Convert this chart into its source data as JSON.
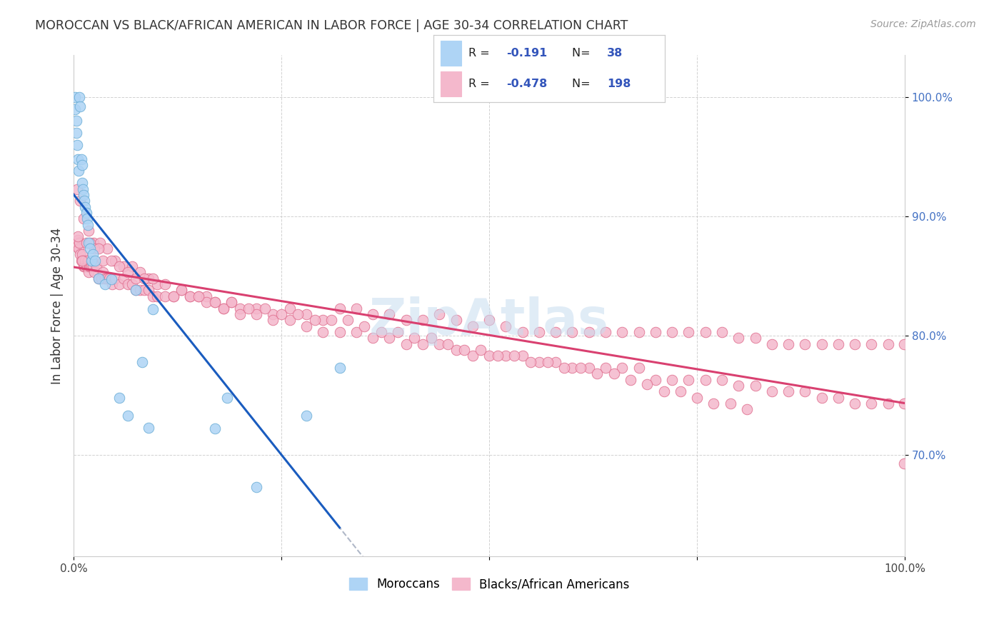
{
  "title": "MOROCCAN VS BLACK/AFRICAN AMERICAN IN LABOR FORCE | AGE 30-34 CORRELATION CHART",
  "source": "Source: ZipAtlas.com",
  "ylabel": "In Labor Force | Age 30-34",
  "xlim": [
    0.0,
    1.0
  ],
  "ylim": [
    0.615,
    1.035
  ],
  "yticks": [
    0.7,
    0.8,
    0.9,
    1.0
  ],
  "ytick_labels": [
    "70.0%",
    "80.0%",
    "90.0%",
    "100.0%"
  ],
  "xtick_labels": [
    "0.0%",
    "",
    "",
    "",
    "100.0%"
  ],
  "moroccan_color": "#aed4f5",
  "moroccan_edge": "#6baed6",
  "black_color": "#f4b8cc",
  "black_edge": "#e07090",
  "blue_line_color": "#1a5cbf",
  "pink_line_color": "#d94070",
  "dashed_line_color": "#b0b8c8",
  "background_color": "#ffffff",
  "watermark": "ZipAtlas",
  "watermark_color": "#c8ddf0",
  "r1": "-0.191",
  "n1": "38",
  "r2": "-0.478",
  "n2": "198",
  "moroccan_x": [
    0.002,
    0.002,
    0.003,
    0.003,
    0.004,
    0.005,
    0.006,
    0.007,
    0.008,
    0.009,
    0.01,
    0.01,
    0.011,
    0.012,
    0.013,
    0.014,
    0.015,
    0.016,
    0.017,
    0.018,
    0.02,
    0.021,
    0.023,
    0.026,
    0.03,
    0.038,
    0.045,
    0.055,
    0.065,
    0.075,
    0.082,
    0.09,
    0.095,
    0.17,
    0.185,
    0.22,
    0.28,
    0.32
  ],
  "moroccan_y": [
    1.0,
    0.99,
    0.98,
    0.97,
    0.96,
    0.948,
    0.938,
    1.0,
    0.992,
    0.948,
    0.943,
    0.928,
    0.923,
    0.918,
    0.913,
    0.908,
    0.903,
    0.898,
    0.893,
    0.878,
    0.873,
    0.863,
    0.868,
    0.863,
    0.848,
    0.843,
    0.847,
    0.748,
    0.733,
    0.838,
    0.778,
    0.723,
    0.822,
    0.722,
    0.748,
    0.673,
    0.733,
    0.773
  ],
  "black_x": [
    0.003,
    0.005,
    0.006,
    0.007,
    0.008,
    0.009,
    0.01,
    0.011,
    0.012,
    0.013,
    0.014,
    0.015,
    0.016,
    0.017,
    0.018,
    0.019,
    0.02,
    0.021,
    0.022,
    0.023,
    0.025,
    0.027,
    0.03,
    0.033,
    0.035,
    0.038,
    0.04,
    0.043,
    0.046,
    0.05,
    0.055,
    0.06,
    0.065,
    0.07,
    0.075,
    0.08,
    0.085,
    0.09,
    0.095,
    0.1,
    0.11,
    0.12,
    0.13,
    0.14,
    0.15,
    0.16,
    0.17,
    0.18,
    0.19,
    0.2,
    0.22,
    0.24,
    0.26,
    0.28,
    0.3,
    0.32,
    0.34,
    0.36,
    0.38,
    0.4,
    0.42,
    0.44,
    0.46,
    0.48,
    0.5,
    0.52,
    0.54,
    0.56,
    0.58,
    0.6,
    0.62,
    0.64,
    0.66,
    0.68,
    0.7,
    0.72,
    0.74,
    0.76,
    0.78,
    0.8,
    0.82,
    0.84,
    0.86,
    0.88,
    0.9,
    0.92,
    0.94,
    0.96,
    0.98,
    0.999,
    0.004,
    0.008,
    0.012,
    0.018,
    0.024,
    0.032,
    0.04,
    0.05,
    0.06,
    0.07,
    0.08,
    0.09,
    0.1,
    0.12,
    0.14,
    0.16,
    0.18,
    0.2,
    0.22,
    0.24,
    0.26,
    0.28,
    0.3,
    0.32,
    0.34,
    0.36,
    0.38,
    0.4,
    0.42,
    0.44,
    0.46,
    0.48,
    0.5,
    0.52,
    0.54,
    0.56,
    0.58,
    0.6,
    0.62,
    0.64,
    0.66,
    0.68,
    0.7,
    0.72,
    0.74,
    0.76,
    0.78,
    0.8,
    0.82,
    0.84,
    0.86,
    0.88,
    0.9,
    0.92,
    0.94,
    0.96,
    0.98,
    0.999,
    0.005,
    0.01,
    0.015,
    0.02,
    0.025,
    0.03,
    0.035,
    0.045,
    0.055,
    0.065,
    0.075,
    0.085,
    0.095,
    0.11,
    0.13,
    0.15,
    0.17,
    0.19,
    0.21,
    0.23,
    0.25,
    0.27,
    0.29,
    0.31,
    0.33,
    0.35,
    0.37,
    0.39,
    0.41,
    0.43,
    0.45,
    0.47,
    0.49,
    0.51,
    0.53,
    0.55,
    0.57,
    0.59,
    0.61,
    0.63,
    0.65,
    0.67,
    0.69,
    0.71,
    0.73,
    0.75,
    0.77,
    0.79,
    0.81,
    0.999
  ],
  "black_y": [
    0.875,
    0.88,
    0.873,
    0.878,
    0.868,
    0.863,
    0.868,
    0.863,
    0.858,
    0.858,
    0.863,
    0.858,
    0.858,
    0.863,
    0.853,
    0.858,
    0.858,
    0.858,
    0.863,
    0.858,
    0.853,
    0.858,
    0.848,
    0.848,
    0.853,
    0.848,
    0.848,
    0.848,
    0.843,
    0.848,
    0.843,
    0.848,
    0.843,
    0.843,
    0.838,
    0.838,
    0.838,
    0.838,
    0.833,
    0.833,
    0.833,
    0.833,
    0.838,
    0.833,
    0.833,
    0.833,
    0.828,
    0.823,
    0.828,
    0.823,
    0.823,
    0.818,
    0.823,
    0.818,
    0.813,
    0.823,
    0.823,
    0.818,
    0.818,
    0.813,
    0.813,
    0.818,
    0.813,
    0.808,
    0.813,
    0.808,
    0.803,
    0.803,
    0.803,
    0.803,
    0.803,
    0.803,
    0.803,
    0.803,
    0.803,
    0.803,
    0.803,
    0.803,
    0.803,
    0.798,
    0.798,
    0.793,
    0.793,
    0.793,
    0.793,
    0.793,
    0.793,
    0.793,
    0.793,
    0.793,
    0.923,
    0.913,
    0.898,
    0.888,
    0.878,
    0.878,
    0.873,
    0.863,
    0.858,
    0.858,
    0.853,
    0.848,
    0.843,
    0.833,
    0.833,
    0.828,
    0.823,
    0.818,
    0.818,
    0.813,
    0.813,
    0.808,
    0.803,
    0.803,
    0.803,
    0.798,
    0.798,
    0.793,
    0.793,
    0.793,
    0.788,
    0.783,
    0.783,
    0.783,
    0.783,
    0.778,
    0.778,
    0.773,
    0.773,
    0.773,
    0.773,
    0.773,
    0.763,
    0.763,
    0.763,
    0.763,
    0.763,
    0.758,
    0.758,
    0.753,
    0.753,
    0.753,
    0.748,
    0.748,
    0.743,
    0.743,
    0.743,
    0.743,
    0.883,
    0.863,
    0.878,
    0.878,
    0.873,
    0.873,
    0.863,
    0.863,
    0.858,
    0.853,
    0.848,
    0.848,
    0.848,
    0.843,
    0.838,
    0.833,
    0.828,
    0.828,
    0.823,
    0.823,
    0.818,
    0.818,
    0.813,
    0.813,
    0.813,
    0.808,
    0.803,
    0.803,
    0.798,
    0.798,
    0.793,
    0.788,
    0.788,
    0.783,
    0.783,
    0.778,
    0.778,
    0.773,
    0.773,
    0.768,
    0.768,
    0.763,
    0.759,
    0.753,
    0.753,
    0.748,
    0.743,
    0.743,
    0.738,
    0.693
  ]
}
